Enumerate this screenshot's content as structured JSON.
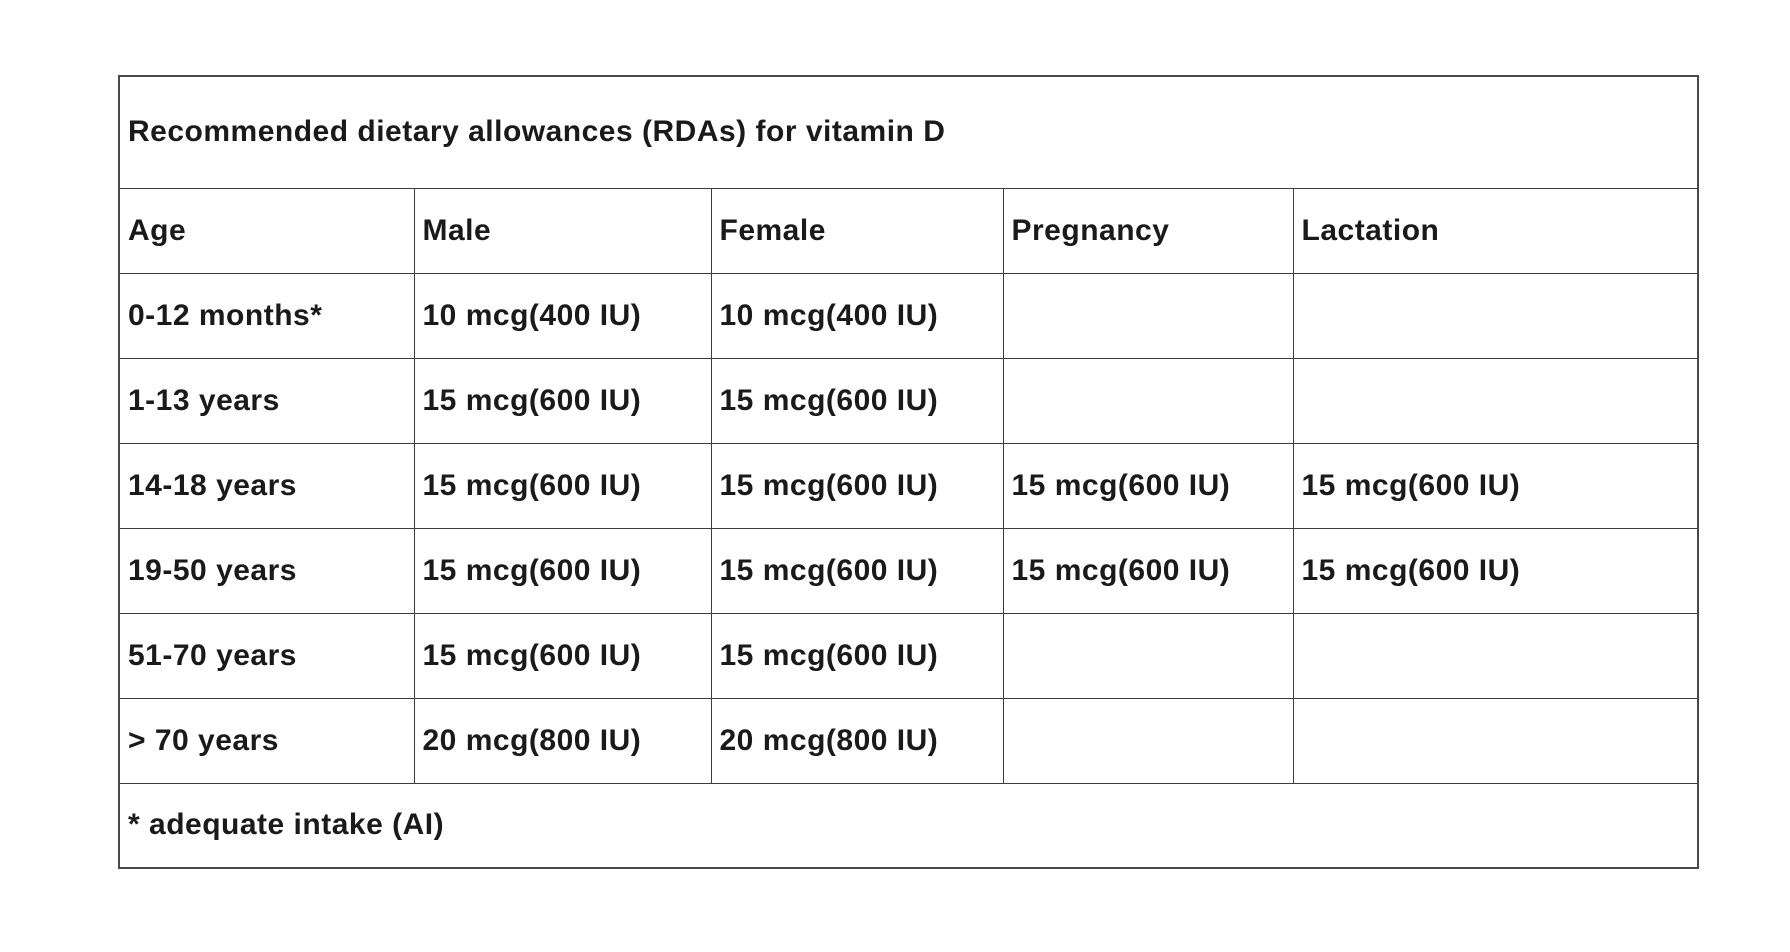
{
  "page": {
    "background_color": "#ffffff",
    "text_color": "#1a1a1a",
    "border_color": "#3d3d3d"
  },
  "table": {
    "title": "Recommended dietary allowances (RDAs) for vitamin D",
    "columns": [
      "Age",
      "Male",
      "Female",
      "Pregnancy",
      "Lactation"
    ],
    "rows": [
      {
        "age": "0-12 months*",
        "male": "10 mcg(400 IU)",
        "female": "10 mcg(400 IU)",
        "pregnancy": "",
        "lactation": ""
      },
      {
        "age": "1-13 years",
        "male": "15 mcg(600 IU)",
        "female": "15 mcg(600 IU)",
        "pregnancy": "",
        "lactation": ""
      },
      {
        "age": "14-18 years",
        "male": "15 mcg(600 IU)",
        "female": "15 mcg(600 IU)",
        "pregnancy": "15 mcg(600 IU)",
        "lactation": "15 mcg(600 IU)"
      },
      {
        "age": "19-50 years",
        "male": "15 mcg(600 IU)",
        "female": "15 mcg(600 IU)",
        "pregnancy": "15 mcg(600 IU)",
        "lactation": "15 mcg(600 IU)"
      },
      {
        "age": "51-70 years",
        "male": "15 mcg(600 IU)",
        "female": "15 mcg(600 IU)",
        "pregnancy": "",
        "lactation": ""
      },
      {
        "age": "> 70 years",
        "male": "20 mcg(800 IU)",
        "female": "20 mcg(800 IU)",
        "pregnancy": "",
        "lactation": ""
      }
    ],
    "footnote": "* adequate intake (AI)"
  }
}
